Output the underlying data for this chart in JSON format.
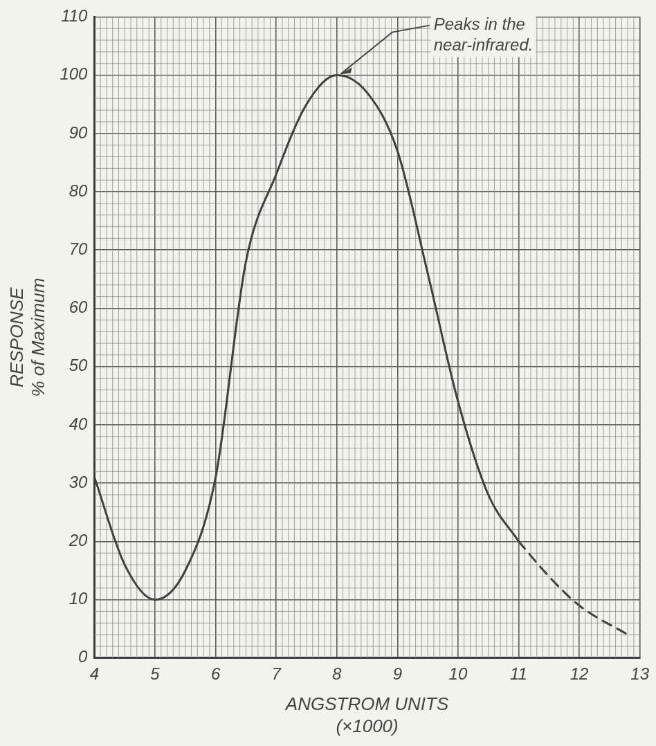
{
  "chart_data": {
    "type": "line",
    "xlabel": "ANGSTROM UNITS\n(×1000)",
    "ylabel": "RESPONSE\n% of Maximum",
    "xlim": [
      4,
      13
    ],
    "xticks": [
      4,
      5,
      6,
      7,
      8,
      9,
      10,
      11,
      12,
      13
    ],
    "ylim": [
      0,
      110
    ],
    "yticks": [
      0,
      10,
      20,
      30,
      40,
      50,
      60,
      70,
      80,
      90,
      100,
      110
    ],
    "grid": true,
    "marker": "none",
    "legend": false,
    "annotations": [
      {
        "text": "Peaks in the\nnear-infrared.",
        "x": 8,
        "y": 100
      }
    ],
    "series": [
      {
        "color": "#404040",
        "line_style": "solid",
        "x": [
          4,
          4.5,
          5,
          5.5,
          6,
          6.5,
          7,
          7.5,
          8,
          8.5,
          9,
          9.5,
          10,
          10.5,
          11
        ],
        "values": [
          31,
          16,
          10,
          15,
          31,
          68,
          83,
          95,
          100,
          97,
          87,
          66,
          44,
          28,
          20
        ]
      },
      {
        "color": "#404040",
        "line_style": "dashed",
        "x": [
          11,
          11.5,
          12,
          12.8
        ],
        "values": [
          20,
          14,
          9,
          4
        ]
      }
    ]
  }
}
